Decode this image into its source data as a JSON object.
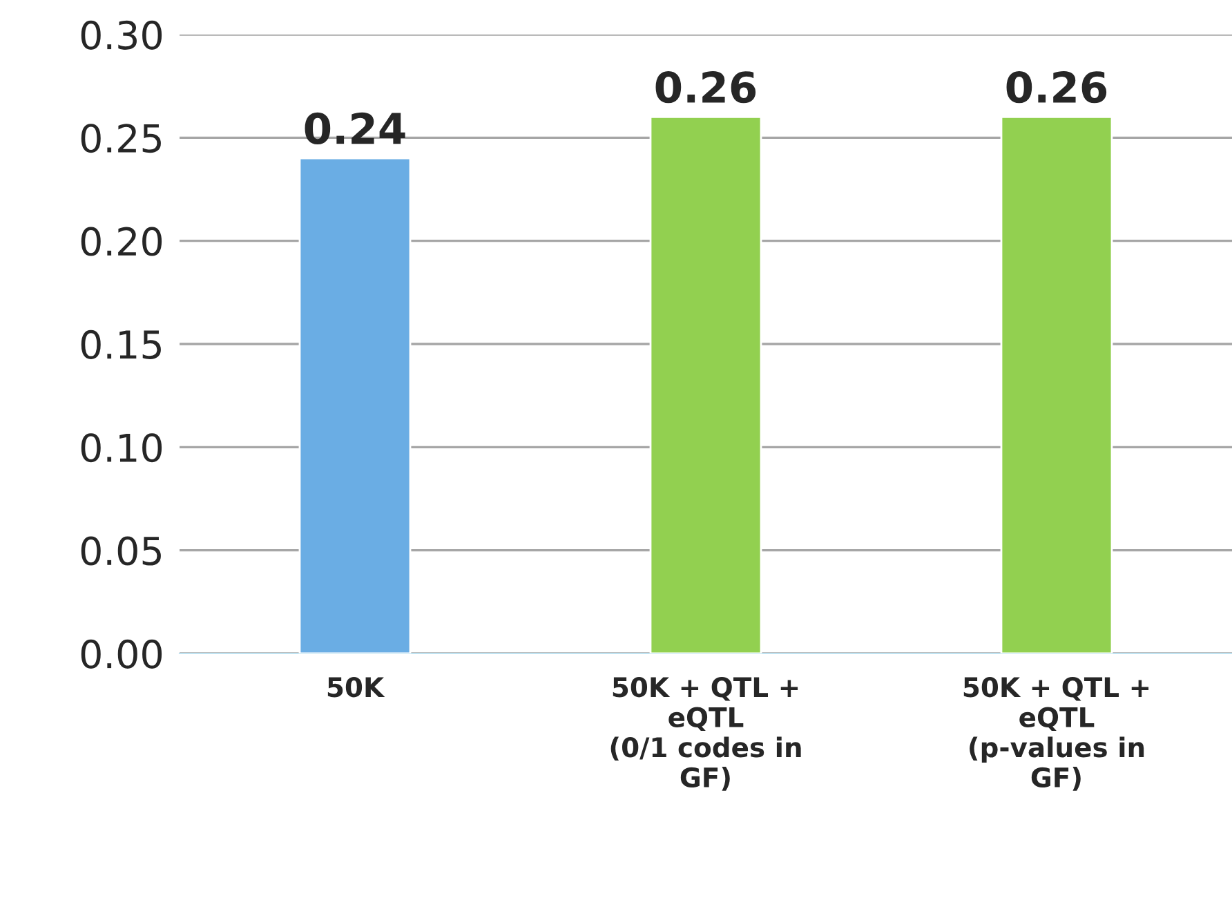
{
  "chart_data": {
    "type": "bar",
    "categories": [
      "50K",
      "50K + QTL +\neQTL\n(0/1 codes in\nGF)",
      "50K + QTL +\neQTL\n(p-values in\nGF)"
    ],
    "values": [
      0.24,
      0.26,
      0.26
    ],
    "colors": [
      "#6aade4",
      "#92d050",
      "#92d050"
    ],
    "ylim": [
      0,
      0.3
    ],
    "yticks": [
      {
        "value": 0,
        "label": "0.00"
      },
      {
        "value": 0.05,
        "label": "0.05"
      },
      {
        "value": 0.1,
        "label": "0.10"
      },
      {
        "value": 0.15,
        "label": "0.15"
      },
      {
        "value": 0.2,
        "label": "0.20"
      },
      {
        "value": 0.25,
        "label": "0.25"
      },
      {
        "value": 0.3,
        "label": "0.30"
      }
    ],
    "grid": "y",
    "data_labels": true
  }
}
